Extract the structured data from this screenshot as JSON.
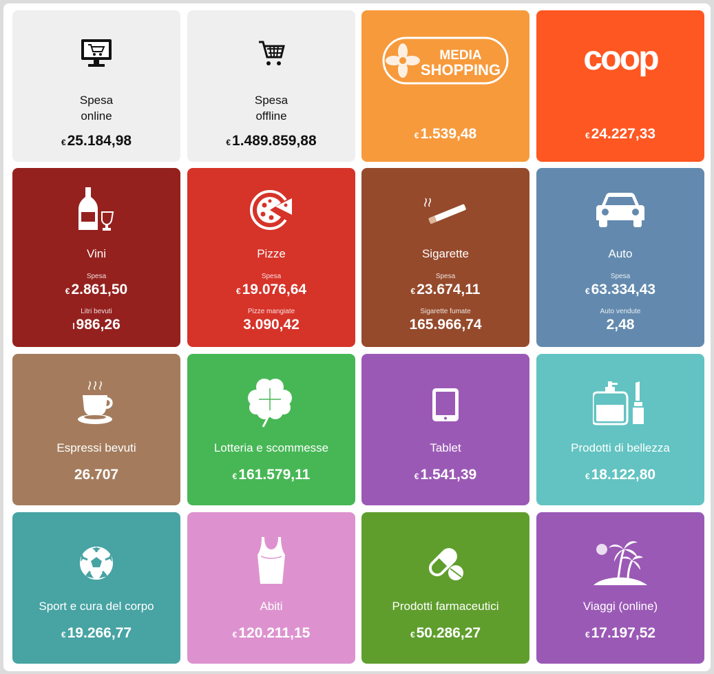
{
  "tiles": [
    {
      "id": "spesa-online",
      "title_lines": [
        "Spesa",
        "online"
      ],
      "currency": "€",
      "value": "25.184,98",
      "color": "#efefef",
      "icon": "monitor-cart-icon"
    },
    {
      "id": "spesa-offline",
      "title_lines": [
        "Spesa",
        "offline"
      ],
      "currency": "€",
      "value": "1.489.859,88",
      "color": "#efefef",
      "icon": "cart-icon"
    },
    {
      "id": "media-shopping",
      "logo_text": [
        "MEDIA",
        "SHOPPING"
      ],
      "currency": "€",
      "value": "1.539,48",
      "color": "#f79a3c",
      "icon": "media-shopping-logo"
    },
    {
      "id": "coop",
      "logo_text": "coop",
      "currency": "€",
      "value": "24.227,33",
      "color": "#ff5722",
      "icon": "coop-logo"
    },
    {
      "id": "vini",
      "title": "Vini",
      "sub1": "Spesa",
      "currency": "€",
      "value": "2.861,50",
      "sub2": "Litri bevuti",
      "prefix2": "l",
      "value2": "986,26",
      "color": "#94211e",
      "icon": "wine-icon"
    },
    {
      "id": "pizze",
      "title": "Pizze",
      "sub1": "Spesa",
      "currency": "€",
      "value": "19.076,64",
      "sub2": "Pizze mangiate",
      "value2": "3.090,42",
      "color": "#d63329",
      "icon": "pizza-icon"
    },
    {
      "id": "sigarette",
      "title": "Sigarette",
      "sub1": "Spesa",
      "currency": "€",
      "value": "23.674,11",
      "sub2": "Sigarette fumate",
      "value2": "165.966,74",
      "color": "#954a2c",
      "icon": "cigarette-icon"
    },
    {
      "id": "auto",
      "title": "Auto",
      "sub1": "Spesa",
      "currency": "€",
      "value": "63.334,43",
      "sub2": "Auto vendute",
      "value2": "2,48",
      "color": "#638aae",
      "icon": "car-icon"
    },
    {
      "id": "espressi",
      "title": "Espressi bevuti",
      "value": "26.707",
      "color": "#a47c5d",
      "icon": "coffee-cup-icon"
    },
    {
      "id": "lotteria",
      "title": "Lotteria e scommesse",
      "currency": "€",
      "value": "161.579,11",
      "color": "#47b755",
      "icon": "clover-icon"
    },
    {
      "id": "tablet",
      "title": "Tablet",
      "currency": "€",
      "value": "1.541,39",
      "color": "#9b59b6",
      "icon": "tablet-icon"
    },
    {
      "id": "bellezza",
      "title": "Prodotti di bellezza",
      "currency": "€",
      "value": "18.122,80",
      "color": "#62c3c2",
      "icon": "perfume-lipstick-icon"
    },
    {
      "id": "sport",
      "title": "Sport e cura del corpo",
      "currency": "€",
      "value": "19.266,77",
      "color": "#48a3a3",
      "icon": "soccer-ball-icon"
    },
    {
      "id": "abiti",
      "title": "Abiti",
      "currency": "€",
      "value": "120.211,15",
      "color": "#dd92cf",
      "icon": "tank-top-icon"
    },
    {
      "id": "farmaceutici",
      "title": "Prodotti farmaceutici",
      "currency": "€",
      "value": "50.286,27",
      "color": "#5f9e2d",
      "icon": "pills-icon"
    },
    {
      "id": "viaggi",
      "title": "Viaggi (online)",
      "currency": "€",
      "value": "17.197,52",
      "color": "#9b59b6",
      "icon": "palm-island-icon"
    }
  ]
}
